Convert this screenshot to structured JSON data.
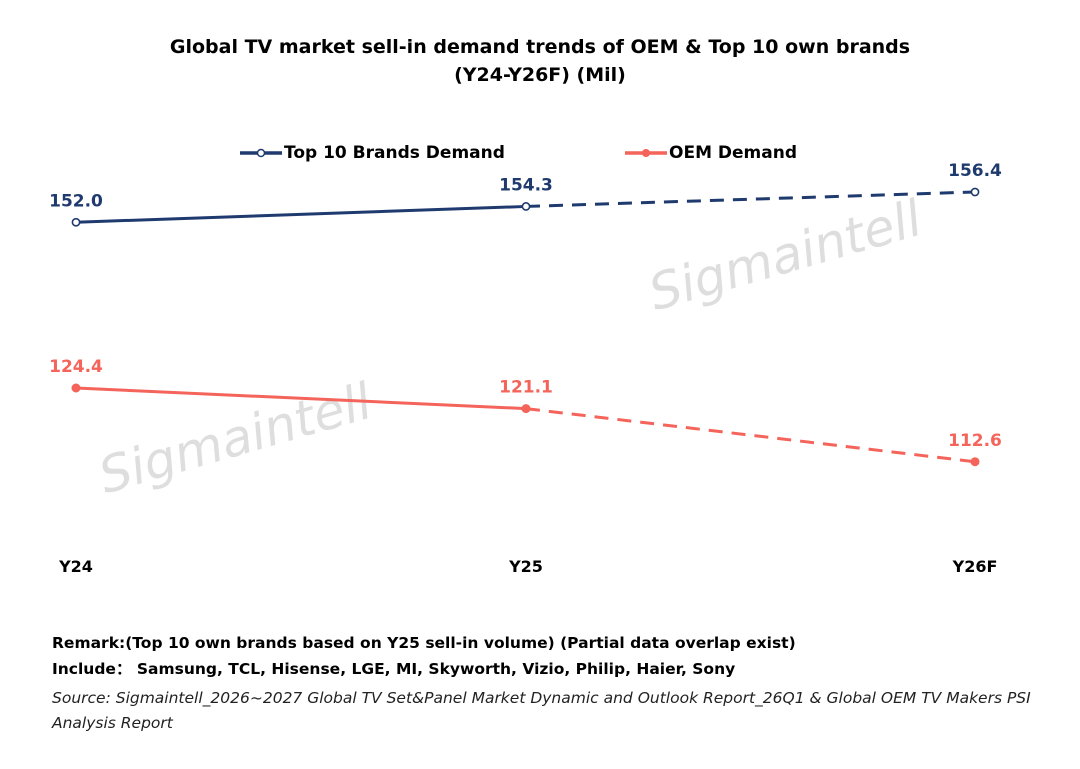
{
  "title_line1": "Global TV market sell-in demand  trends of OEM & Top 10 own brands",
  "title_line2": "(Y24-Y26F) (Mil)",
  "watermark": "Sigmaintell",
  "remark": "Remark:(Top 10 own brands based on Y25 sell-in volume) (Partial data overlap exist)",
  "include": "Include：  Samsung, TCL, Hisense, LGE, MI, Skyworth, Vizio, Philip, Haier, Sony",
  "source": "Source: Sigmaintell_2026~2027 Global TV Set&Panel Market Dynamic and Outlook Report_26Q1 & Global OEM TV Makers PSI Analysis Report",
  "colors": {
    "top10": "#1f3a6e",
    "oem": "#f4645a"
  },
  "chart_data": {
    "type": "line",
    "categories": [
      "Y24",
      "Y25",
      "Y26F"
    ],
    "series": [
      {
        "name": "Top 10 Brands Demand",
        "values": [
          152.0,
          154.3,
          156.4
        ],
        "labels": [
          "152.0",
          "154.3",
          "156.4"
        ],
        "marker": "hollow-circle",
        "dashed_from_index": 1
      },
      {
        "name": "OEM Demand",
        "values": [
          124.4,
          121.1,
          112.6
        ],
        "labels": [
          "124.4",
          "121.1",
          "112.6"
        ],
        "marker": "filled-circle",
        "dashed_from_index": 1
      }
    ],
    "legend": "top",
    "grid": false
  }
}
